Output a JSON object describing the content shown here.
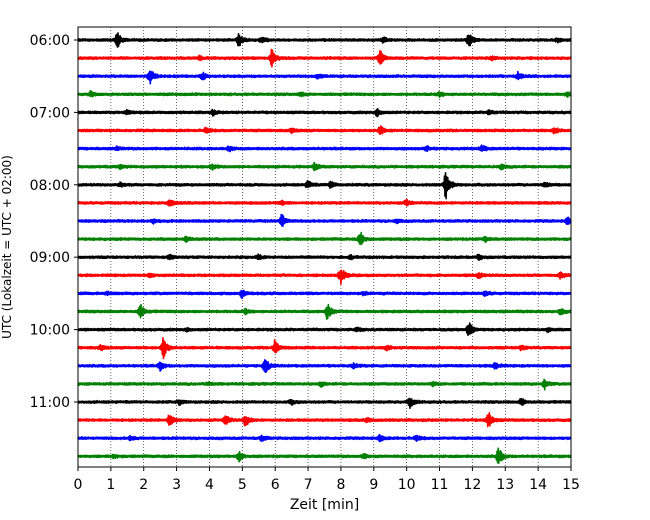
{
  "chart_data": {
    "type": "line",
    "title": "",
    "xlabel": "Zeit  [min]",
    "ylabel": "UTC (Lokalzeit = UTC + 02:00)",
    "xlim": [
      0,
      15
    ],
    "x_ticks": [
      "0",
      "1",
      "2",
      "3",
      "4",
      "5",
      "6",
      "7",
      "8",
      "9",
      "10",
      "11",
      "12",
      "13",
      "14",
      "15"
    ],
    "y_tick_labels": [
      "06:00",
      "07:00",
      "08:00",
      "09:00",
      "10:00",
      "11:00"
    ],
    "grid": "vertical dotted",
    "row_minutes": 15,
    "colors": [
      "#000000",
      "#ff0000",
      "#0000ff",
      "#008000"
    ],
    "traces": [
      {
        "start": "06:00",
        "color": "#000000",
        "events": [
          [
            1.2,
            1.0
          ],
          [
            4.9,
            0.7
          ],
          [
            5.6,
            0.35
          ],
          [
            9.3,
            0.3
          ],
          [
            11.9,
            0.85
          ],
          [
            14.6,
            0.25
          ]
        ]
      },
      {
        "start": "06:15",
        "color": "#ff0000",
        "events": [
          [
            5.9,
            1.0
          ],
          [
            9.2,
            0.85
          ],
          [
            3.7,
            0.25
          ],
          [
            12.6,
            0.2
          ]
        ]
      },
      {
        "start": "06:30",
        "color": "#0000ff",
        "events": [
          [
            2.2,
            0.95
          ],
          [
            3.8,
            0.4
          ],
          [
            13.4,
            0.45
          ],
          [
            7.3,
            0.25
          ]
        ]
      },
      {
        "start": "06:45",
        "color": "#008000",
        "events": [
          [
            0.4,
            0.3
          ],
          [
            6.8,
            0.2
          ],
          [
            11.0,
            0.25
          ],
          [
            14.9,
            0.3
          ]
        ]
      },
      {
        "start": "07:00",
        "color": "#000000",
        "events": [
          [
            9.1,
            0.45
          ],
          [
            4.1,
            0.3
          ],
          [
            1.5,
            0.25
          ],
          [
            12.5,
            0.25
          ]
        ]
      },
      {
        "start": "07:15",
        "color": "#ff0000",
        "events": [
          [
            9.2,
            0.5
          ],
          [
            14.5,
            0.35
          ],
          [
            3.9,
            0.3
          ],
          [
            6.5,
            0.25
          ]
        ]
      },
      {
        "start": "07:30",
        "color": "#0000ff",
        "events": [
          [
            12.3,
            0.4
          ],
          [
            4.6,
            0.3
          ],
          [
            10.6,
            0.3
          ],
          [
            1.2,
            0.2
          ]
        ]
      },
      {
        "start": "07:45",
        "color": "#008000",
        "events": [
          [
            7.2,
            0.4
          ],
          [
            4.1,
            0.3
          ],
          [
            12.9,
            0.3
          ],
          [
            1.3,
            0.2
          ]
        ]
      },
      {
        "start": "08:00",
        "color": "#000000",
        "events": [
          [
            11.2,
            1.9
          ],
          [
            7.0,
            0.45
          ],
          [
            7.7,
            0.4
          ],
          [
            14.2,
            0.3
          ],
          [
            1.3,
            0.25
          ]
        ]
      },
      {
        "start": "08:15",
        "color": "#ff0000",
        "events": [
          [
            2.8,
            0.45
          ],
          [
            10.0,
            0.35
          ],
          [
            6.2,
            0.25
          ]
        ]
      },
      {
        "start": "08:30",
        "color": "#0000ff",
        "events": [
          [
            6.2,
            0.85
          ],
          [
            14.9,
            0.4
          ],
          [
            2.3,
            0.25
          ],
          [
            9.7,
            0.2
          ]
        ]
      },
      {
        "start": "08:45",
        "color": "#008000",
        "events": [
          [
            8.6,
            0.8
          ],
          [
            3.3,
            0.25
          ],
          [
            12.4,
            0.25
          ]
        ]
      },
      {
        "start": "09:00",
        "color": "#000000",
        "events": [
          [
            2.8,
            0.3
          ],
          [
            5.5,
            0.25
          ],
          [
            12.2,
            0.3
          ],
          [
            8.3,
            0.2
          ]
        ]
      },
      {
        "start": "09:15",
        "color": "#ff0000",
        "events": [
          [
            8.0,
            1.0
          ],
          [
            14.7,
            0.4
          ],
          [
            12.2,
            0.3
          ],
          [
            2.2,
            0.25
          ]
        ]
      },
      {
        "start": "09:30",
        "color": "#0000ff",
        "events": [
          [
            5.0,
            0.55
          ],
          [
            12.4,
            0.3
          ],
          [
            0.9,
            0.2
          ],
          [
            8.7,
            0.2
          ]
        ]
      },
      {
        "start": "09:45",
        "color": "#008000",
        "events": [
          [
            1.9,
            0.8
          ],
          [
            7.6,
            1.0
          ],
          [
            14.7,
            0.4
          ],
          [
            5.1,
            0.25
          ]
        ]
      },
      {
        "start": "10:00",
        "color": "#000000",
        "events": [
          [
            11.9,
            0.85
          ],
          [
            3.3,
            0.2
          ],
          [
            8.5,
            0.2
          ],
          [
            14.3,
            0.2
          ]
        ]
      },
      {
        "start": "10:15",
        "color": "#ff0000",
        "events": [
          [
            2.6,
            1.3
          ],
          [
            6.0,
            0.9
          ],
          [
            13.5,
            0.3
          ],
          [
            0.7,
            0.3
          ],
          [
            9.4,
            0.25
          ]
        ]
      },
      {
        "start": "10:30",
        "color": "#0000ff",
        "events": [
          [
            2.5,
            0.5
          ],
          [
            5.7,
            0.9
          ],
          [
            12.7,
            0.45
          ],
          [
            8.4,
            0.25
          ]
        ]
      },
      {
        "start": "10:45",
        "color": "#008000",
        "events": [
          [
            14.2,
            0.55
          ],
          [
            7.4,
            0.25
          ],
          [
            4.0,
            0.2
          ],
          [
            10.8,
            0.2
          ]
        ]
      },
      {
        "start": "11:00",
        "color": "#000000",
        "events": [
          [
            10.1,
            0.7
          ],
          [
            13.5,
            0.45
          ],
          [
            3.1,
            0.25
          ],
          [
            6.5,
            0.25
          ]
        ]
      },
      {
        "start": "11:15",
        "color": "#ff0000",
        "events": [
          [
            2.8,
            0.85
          ],
          [
            4.5,
            0.65
          ],
          [
            5.1,
            0.7
          ],
          [
            12.5,
            0.9
          ],
          [
            8.8,
            0.25
          ]
        ]
      },
      {
        "start": "11:30",
        "color": "#0000ff",
        "events": [
          [
            9.2,
            0.4
          ],
          [
            10.3,
            0.3
          ],
          [
            5.6,
            0.3
          ],
          [
            1.6,
            0.2
          ]
        ]
      },
      {
        "start": "11:45",
        "color": "#008000",
        "events": [
          [
            4.9,
            0.6
          ],
          [
            12.8,
            1.0
          ],
          [
            8.7,
            0.25
          ],
          [
            1.1,
            0.2
          ]
        ]
      }
    ]
  }
}
